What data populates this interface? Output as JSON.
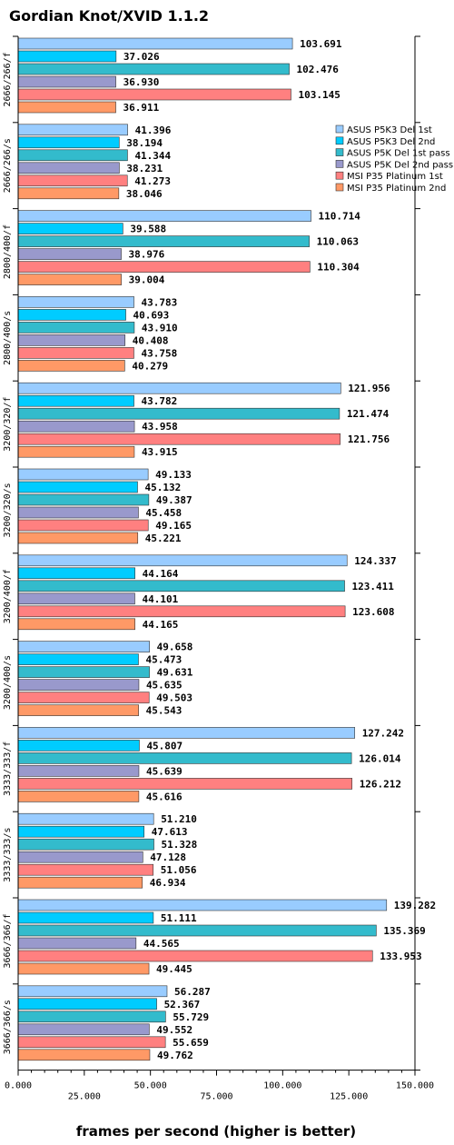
{
  "chart_data": {
    "type": "bar",
    "orientation": "horizontal",
    "title": "Gordian Knot/XVID 1.1.2",
    "xlabel": "frames per second (higher is better)",
    "xlim": [
      0,
      150000
    ],
    "x_ticks": [
      "0.000",
      "25.000",
      "50.000",
      "75.000",
      "100.000",
      "125.000",
      "150.000"
    ],
    "legend_position": "top-right",
    "categories": [
      "2666/266/f",
      "2666/266/s",
      "2800/400/f",
      "2800/400/s",
      "3200/320/f",
      "3200/320/s",
      "3200/400/f",
      "3200/400/s",
      "3333/333/f",
      "3333/333/s",
      "3666/366/f",
      "3666/366/s"
    ],
    "series": [
      {
        "name": "ASUS P5K3 Del 1st",
        "color": "#99ccff",
        "values": [
          103691,
          41396,
          110714,
          43783,
          121956,
          49133,
          124337,
          49658,
          127242,
          51210,
          139282,
          56287
        ],
        "labels": [
          "103.691",
          "41.396",
          "110.714",
          "43.783",
          "121.956",
          "49.133",
          "124.337",
          "49.658",
          "127.242",
          "51.210",
          "139.282",
          "56.287"
        ]
      },
      {
        "name": "ASUS P5K3 Del 2nd",
        "color": "#00ccff",
        "values": [
          37026,
          38194,
          39588,
          40693,
          43782,
          45132,
          44164,
          45473,
          45807,
          47613,
          51111,
          52367
        ],
        "labels": [
          "37.026",
          "38.194",
          "39.588",
          "40.693",
          "43.782",
          "45.132",
          "44.164",
          "45.473",
          "45.807",
          "47.613",
          "51.111",
          "52.367"
        ]
      },
      {
        "name": "ASUS P5K Del 1st pass",
        "color": "#33bbcc",
        "values": [
          102476,
          41344,
          110063,
          43910,
          121474,
          49387,
          123411,
          49631,
          126014,
          51328,
          135369,
          55729
        ],
        "labels": [
          "102.476",
          "41.344",
          "110.063",
          "43.910",
          "121.474",
          "49.387",
          "123.411",
          "49.631",
          "126.014",
          "51.328",
          "135.369",
          "55.729"
        ]
      },
      {
        "name": "ASUS P5K Del 2nd pass",
        "color": "#9999cc",
        "values": [
          36930,
          38231,
          38976,
          40408,
          43958,
          45458,
          44101,
          45635,
          45639,
          47128,
          44565,
          49552
        ],
        "labels": [
          "36.930",
          "38.231",
          "38.976",
          "40.408",
          "43.958",
          "45.458",
          "44.101",
          "45.635",
          "45.639",
          "47.128",
          "44.565",
          "49.552"
        ]
      },
      {
        "name": "MSI P35 Platinum 1st",
        "color": "#ff8080",
        "values": [
          103145,
          41273,
          110304,
          43758,
          121756,
          49165,
          123608,
          49503,
          126212,
          51056,
          133953,
          55659
        ],
        "labels": [
          "103.145",
          "41.273",
          "110.304",
          "43.758",
          "121.756",
          "49.165",
          "123.608",
          "49.503",
          "126.212",
          "51.056",
          "133.953",
          "55.659"
        ]
      },
      {
        "name": "MSI P35 Platinum 2nd",
        "color": "#ff9966",
        "values": [
          36911,
          38046,
          39004,
          40279,
          43915,
          45221,
          44165,
          45543,
          45616,
          46934,
          49445,
          49762
        ],
        "labels": [
          "36.911",
          "38.046",
          "39.004",
          "40.279",
          "43.915",
          "45.221",
          "44.165",
          "45.543",
          "45.616",
          "46.934",
          "49.445",
          "49.762"
        ]
      }
    ]
  }
}
